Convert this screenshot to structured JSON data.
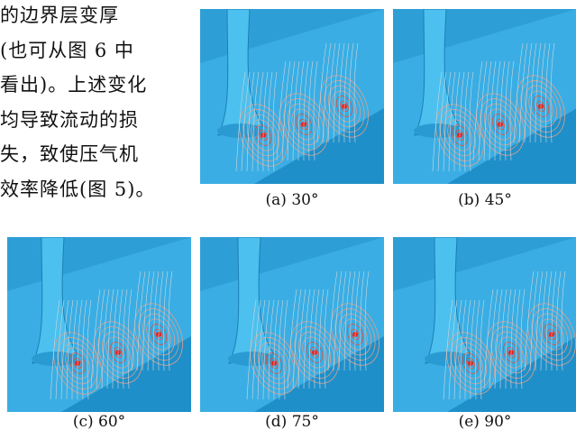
{
  "body_text": {
    "lines": [
      "的边界层变厚",
      "(也可从图 6 中",
      "看出)。上述变化",
      "均导致流动的损",
      "失，致使压气机",
      "效率降低(图 5)。"
    ]
  },
  "figures": [
    {
      "caption": "(a) 30°"
    },
    {
      "caption": "(b) 45°"
    },
    {
      "caption": "(c) 60°"
    },
    {
      "caption": "(d) 75°"
    },
    {
      "caption": "(e) 90°"
    }
  ]
}
